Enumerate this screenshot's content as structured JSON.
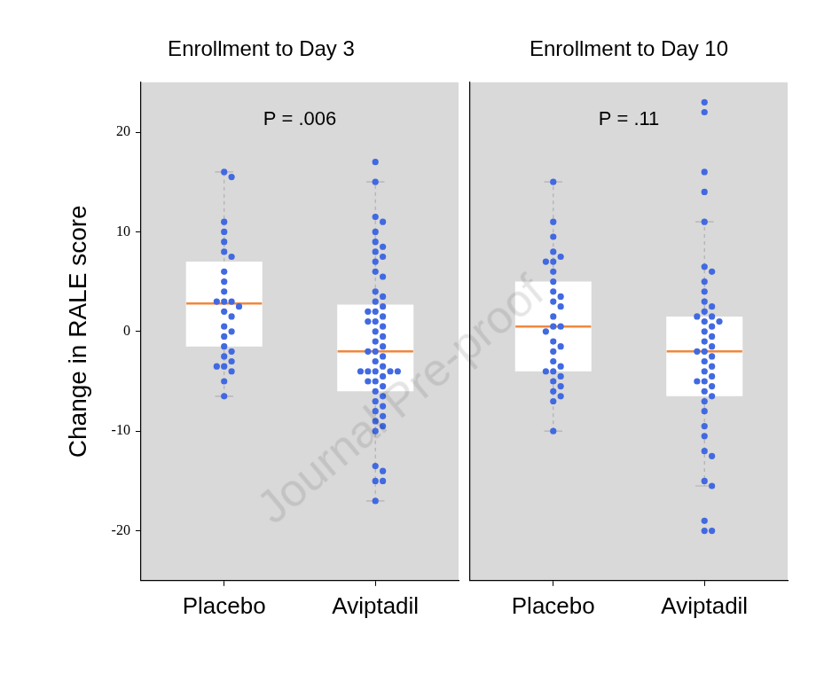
{
  "chart_data": [
    {
      "type": "box",
      "title": "Enrollment to Day 3",
      "annotation": "P = .006",
      "y_label": "Change in RALE score",
      "categories": [
        "Placebo",
        "Aviptadil"
      ],
      "ylim": [
        -25,
        25
      ],
      "yticks": [
        -20,
        -10,
        0,
        10,
        20
      ],
      "grid": false,
      "color": "#4169e1",
      "boxes": [
        {
          "whisker_low": -6.5,
          "q1": -1.5,
          "median": 2.8,
          "q3": 7,
          "whisker_high": 16
        },
        {
          "whisker_low": -17,
          "q1": -6,
          "median": -2,
          "q3": 2.7,
          "whisker_high": 15
        }
      ],
      "points": [
        [
          16,
          15.5,
          11,
          10,
          9,
          8,
          7.5,
          6,
          5,
          4,
          3,
          3,
          3,
          2.5,
          2,
          1.5,
          0.5,
          0,
          -0.5,
          -1.5,
          -2,
          -2.5,
          -3,
          -3.5,
          -3.5,
          -4,
          -5,
          -6.5
        ],
        [
          17,
          15,
          11.5,
          11,
          10,
          9,
          8.5,
          8,
          7.5,
          7,
          6,
          5.5,
          4,
          3.5,
          3,
          2.5,
          2,
          2,
          1.5,
          1,
          1,
          0.5,
          0,
          -0.5,
          -1,
          -1.5,
          -2,
          -2,
          -2.5,
          -3,
          -3.5,
          -4,
          -4,
          -4,
          -4,
          -4,
          -4.5,
          -5,
          -5,
          -5.5,
          -6,
          -6.5,
          -7,
          -7.5,
          -8,
          -8.5,
          -9,
          -9.5,
          -10,
          -13.5,
          -14,
          -15,
          -15,
          -17
        ]
      ]
    },
    {
      "type": "box",
      "title": "Enrollment to Day 10",
      "annotation": "P = .11",
      "categories": [
        "Placebo",
        "Aviptadil"
      ],
      "ylim": [
        -25,
        25
      ],
      "yticks": [
        -20,
        -10,
        0,
        10,
        20
      ],
      "grid": false,
      "tick_labels": "x",
      "color": "#4169e1",
      "boxes": [
        {
          "whisker_low": -10,
          "q1": -4,
          "median": 0.5,
          "q3": 5,
          "whisker_high": 15
        },
        {
          "whisker_low": -15.5,
          "q1": -6.5,
          "median": -2,
          "q3": 1.5,
          "whisker_high": 11
        }
      ],
      "points": [
        [
          15,
          11,
          9.5,
          8,
          7.5,
          7,
          7,
          6,
          5,
          4,
          3.5,
          3,
          2.5,
          1.5,
          0.5,
          0.5,
          0,
          -1,
          -1.5,
          -2,
          -3,
          -3.5,
          -4,
          -4,
          -4.5,
          -5,
          -5.5,
          -6,
          -6.5,
          -7,
          -10
        ],
        [
          23,
          22,
          16,
          14,
          11,
          6.5,
          6,
          5,
          4,
          3,
          2.5,
          2,
          1.5,
          1.5,
          1,
          1,
          0.5,
          0,
          -0.5,
          -1,
          -1.5,
          -2,
          -2,
          -2.5,
          -3,
          -3.5,
          -4,
          -4.5,
          -5,
          -5,
          -5.5,
          -6,
          -6.5,
          -7,
          -8,
          -9.5,
          -10.5,
          -12,
          -12.5,
          -15,
          -15.5,
          -19,
          -20,
          -20
        ]
      ]
    }
  ],
  "watermark": "Journal Pre-proof"
}
